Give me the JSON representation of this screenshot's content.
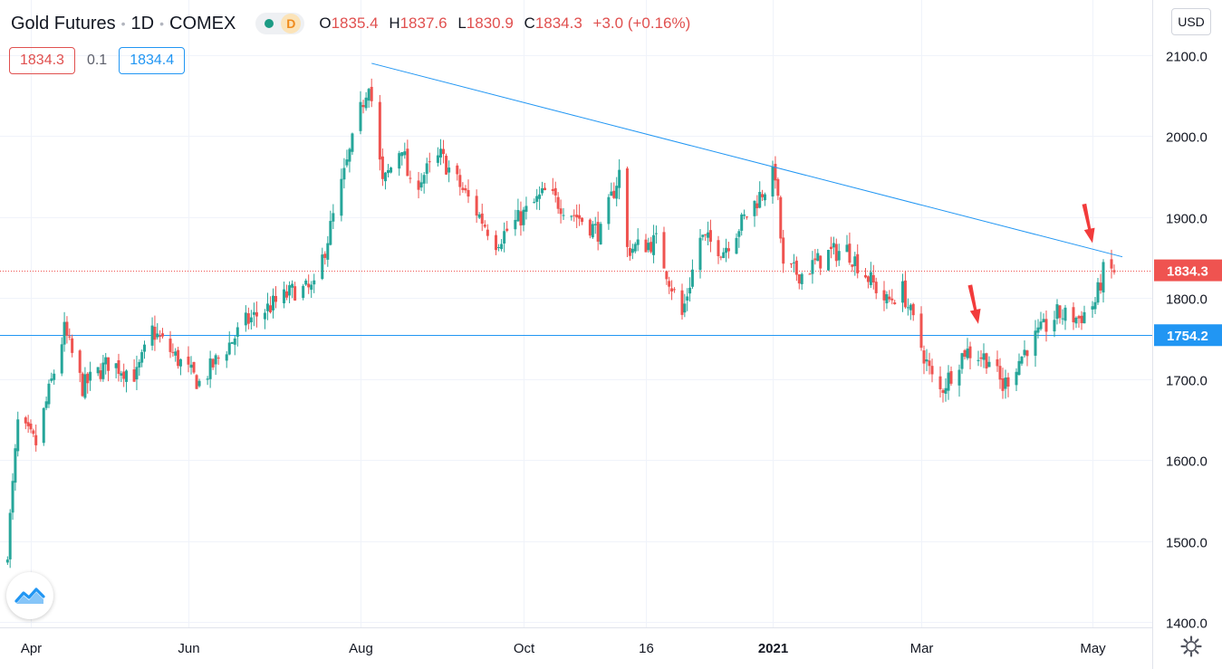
{
  "legend": {
    "symbol_title": "Gold Futures",
    "interval": "1D",
    "exchange": "COMEX",
    "status_letter": "D",
    "open_label": "O",
    "open": "1835.4",
    "high_label": "H",
    "high": "1837.6",
    "low_label": "L",
    "low": "1830.9",
    "close_label": "C",
    "close": "1834.3",
    "change": "+3.0 (+0.16%)"
  },
  "quotes": {
    "bid": "1834.3",
    "spread": "0.1",
    "ask": "1834.4"
  },
  "currency": "USD",
  "icons": {
    "status": "market-status-icon",
    "logo": "tradingview-logo-icon",
    "settings": "gear-icon"
  },
  "colors": {
    "up": "#26a69a",
    "down": "#ef5350",
    "trendline": "#2196f3",
    "last_price": "#ef5350",
    "support": "#2196f3",
    "annotation_arrow": "#f23b3b"
  },
  "chart_data": {
    "type": "candlestick",
    "title": "Gold Futures · 1D · COMEX",
    "y_ticks": [
      1400,
      1500,
      1600,
      1700,
      1800,
      1900,
      2000,
      2100
    ],
    "y_tick_labels": [
      "1400.0",
      "1500.0",
      "1600.0",
      "1700.0",
      "1800.0",
      "1900.0",
      "2000.0",
      "2100.0"
    ],
    "x_ticks": [
      {
        "date": "2020-04-01",
        "label": "Apr",
        "bold": false
      },
      {
        "date": "2020-06-01",
        "label": "Jun",
        "bold": false
      },
      {
        "date": "2020-08-03",
        "label": "Aug",
        "bold": false
      },
      {
        "date": "2020-10-01",
        "label": "Oct",
        "bold": false
      },
      {
        "date": "2020-11-16",
        "label": "16",
        "bold": false
      },
      {
        "date": "2021-01-04",
        "label": "2021",
        "bold": true
      },
      {
        "date": "2021-03-01",
        "label": "Mar",
        "bold": false
      },
      {
        "date": "2021-05-03",
        "label": "May",
        "bold": false
      }
    ],
    "x_range": [
      "2020-03-23",
      "2021-05-20"
    ],
    "y_range": [
      1380,
      2140
    ],
    "last_price": 1834.3,
    "last_price_label": "1834.3",
    "horizontal_line": 1754.2,
    "horizontal_line_label": "1754.2",
    "trendline": {
      "from": {
        "date": "2020-08-07",
        "price": 2090
      },
      "to": {
        "date": "2021-05-14",
        "price": 1851
      }
    },
    "annotations": [
      {
        "type": "arrow",
        "date": "2021-03-22",
        "price": 1768
      },
      {
        "type": "arrow",
        "date": "2021-05-03",
        "price": 1868
      }
    ],
    "anchors": [
      [
        "2020-03-23",
        1490
      ],
      [
        "2020-03-27",
        1645
      ],
      [
        "2020-04-03",
        1620
      ],
      [
        "2020-04-14",
        1760
      ],
      [
        "2020-04-21",
        1690
      ],
      [
        "2020-05-01",
        1720
      ],
      [
        "2020-05-12",
        1705
      ],
      [
        "2020-05-18",
        1760
      ],
      [
        "2020-06-05",
        1695
      ],
      [
        "2020-06-22",
        1770
      ],
      [
        "2020-07-10",
        1810
      ],
      [
        "2020-07-17",
        1810
      ],
      [
        "2020-07-24",
        1900
      ],
      [
        "2020-08-06",
        2070
      ],
      [
        "2020-08-11",
        1940
      ],
      [
        "2020-08-18",
        1990
      ],
      [
        "2020-08-21",
        1935
      ],
      [
        "2020-09-01",
        1975
      ],
      [
        "2020-09-21",
        1870
      ],
      [
        "2020-10-09",
        1930
      ],
      [
        "2020-10-30",
        1880
      ],
      [
        "2020-11-06",
        1955
      ],
      [
        "2020-11-09",
        1860
      ],
      [
        "2020-11-20",
        1870
      ],
      [
        "2020-11-30",
        1778
      ],
      [
        "2020-12-07",
        1875
      ],
      [
        "2020-12-16",
        1860
      ],
      [
        "2021-01-05",
        1955
      ],
      [
        "2021-01-08",
        1835
      ],
      [
        "2021-01-15",
        1830
      ],
      [
        "2021-01-25",
        1855
      ],
      [
        "2021-02-01",
        1860
      ],
      [
        "2021-02-16",
        1795
      ],
      [
        "2021-02-22",
        1810
      ],
      [
        "2021-03-05",
        1700
      ],
      [
        "2021-03-08",
        1685
      ],
      [
        "2021-03-17",
        1735
      ],
      [
        "2021-03-26",
        1725
      ],
      [
        "2021-03-31",
        1690
      ],
      [
        "2021-04-09",
        1740
      ],
      [
        "2021-04-20",
        1780
      ],
      [
        "2021-04-28",
        1775
      ],
      [
        "2021-05-04",
        1795
      ],
      [
        "2021-05-07",
        1832
      ],
      [
        "2021-05-11",
        1834
      ]
    ]
  }
}
